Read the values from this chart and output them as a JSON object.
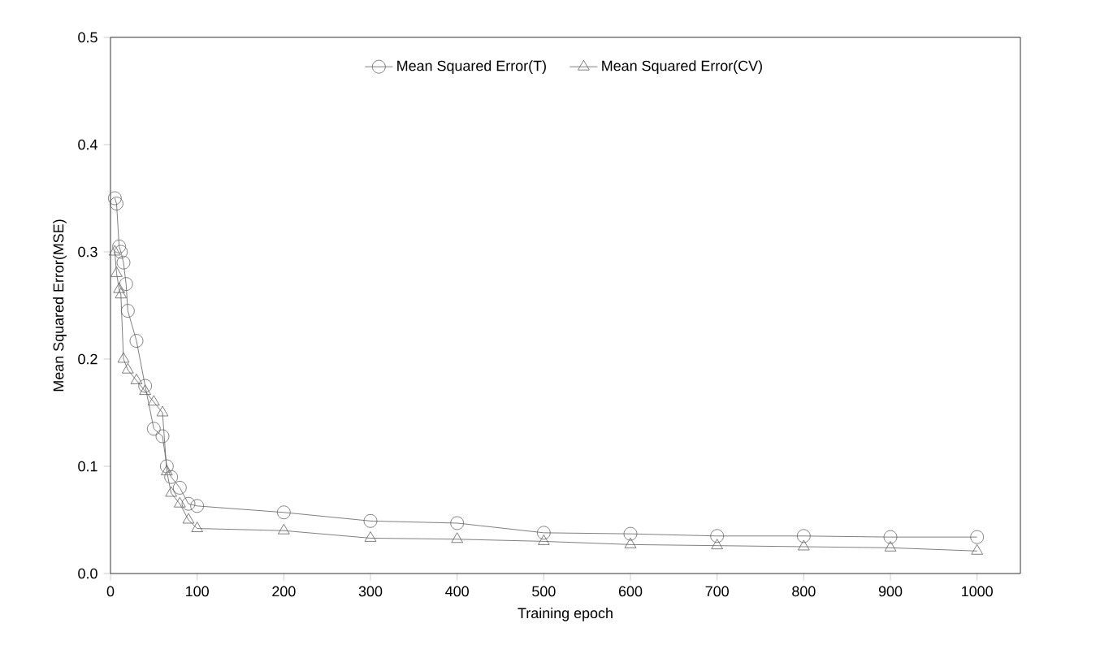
{
  "chart_data": {
    "type": "line",
    "xlabel": "Training epoch",
    "ylabel": "Mean Squared Error(MSE)",
    "xlim": [
      0,
      1050
    ],
    "ylim": [
      0,
      0.5
    ],
    "xticks": [
      0,
      100,
      200,
      300,
      400,
      500,
      600,
      700,
      800,
      900,
      1000
    ],
    "yticks": [
      {
        "value": 0,
        "label": "0.0"
      },
      0.1,
      0.2,
      0.3,
      0.4,
      0.5
    ],
    "grid": false,
    "legend": "top",
    "line_style": "solid",
    "series": [
      {
        "name": "Mean Squared Error(T)",
        "color": "#606060",
        "marker": "circle",
        "x": [
          5,
          7,
          10,
          12,
          15,
          18,
          20,
          30,
          40,
          50,
          60,
          65,
          70,
          80,
          90,
          100,
          200,
          300,
          400,
          500,
          600,
          700,
          800,
          900,
          1000
        ],
        "values": [
          0.35,
          0.345,
          0.305,
          0.3,
          0.29,
          0.27,
          0.245,
          0.217,
          0.175,
          0.135,
          0.128,
          0.1,
          0.09,
          0.08,
          0.065,
          0.063,
          0.057,
          0.049,
          0.047,
          0.038,
          0.037,
          0.035,
          0.035,
          0.034,
          0.034
        ]
      },
      {
        "name": "Mean Squared Error(CV)",
        "color": "#606060",
        "marker": "triangle",
        "x": [
          5,
          7,
          10,
          12,
          15,
          20,
          30,
          40,
          50,
          60,
          65,
          70,
          80,
          90,
          100,
          200,
          300,
          400,
          500,
          600,
          700,
          800,
          900,
          1000
        ],
        "values": [
          0.3,
          0.28,
          0.265,
          0.26,
          0.2,
          0.19,
          0.18,
          0.17,
          0.16,
          0.15,
          0.095,
          0.075,
          0.065,
          0.05,
          0.042,
          0.04,
          0.033,
          0.032,
          0.03,
          0.027,
          0.026,
          0.025,
          0.024,
          0.021
        ]
      }
    ]
  }
}
